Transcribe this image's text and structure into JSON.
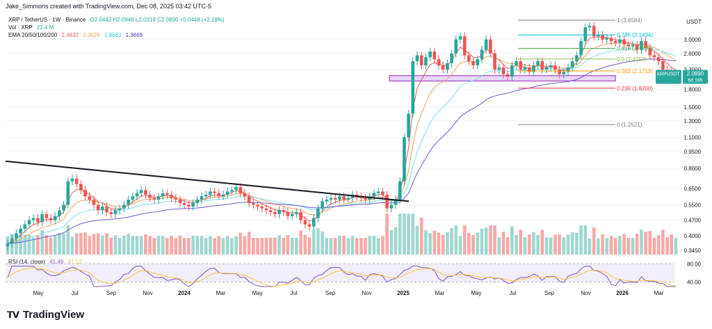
{
  "header": {
    "created_by": "Jake_Simmons created with TradingView.com, Dec 08, 2025 03:42 UTC-5"
  },
  "legend": {
    "symbol": "XRP / TetherUS · 1W · Binance",
    "ohlc": "O2.0442 H2.0946 L2.0319 C2.0890 +0.0448 (+2.19%)",
    "vol_label": "Vol · XRP",
    "vol_value": "21.4 M",
    "ema_label": "EMA 20/50/100/200",
    "ema20": "2.4432",
    "ema50": "2.3026",
    "ema100": "1.8683",
    "ema200": "1.3669",
    "rsi_label": "RSI (14, close)",
    "rsi_value": "41.49",
    "rsi_ma": "47.12"
  },
  "price_badge": {
    "symbol": "XRPUSDT",
    "price": "2.0890",
    "countdown": "6d 16h"
  },
  "currency": "USDT",
  "brand": "TradingView",
  "colors": {
    "up": "#26a69a",
    "down": "#ef5350",
    "ema20": "#f05a5a",
    "ema50": "#f7a35c",
    "ema100": "#7fe0f0",
    "ema200": "#6a5acd",
    "rsi": "#7e57c2",
    "fib_zone": "#c9a7f5"
  },
  "chart_data": {
    "type": "candlestick",
    "log_scale": true,
    "x_ticks": [
      "May",
      "Jul",
      "Sep",
      "Nov",
      "2024",
      "Mar",
      "May",
      "Jul",
      "Sep",
      "Nov",
      "2025",
      "Mar",
      "May",
      "Jul",
      "Sep",
      "Nov",
      "2026",
      "Mar"
    ],
    "y_ticks": [
      "3.0000",
      "2.6000",
      "2.2000",
      "1.8000",
      "1.5000",
      "1.3000",
      "1.1000",
      "0.9500",
      "0.8000",
      "0.6500",
      "0.5500",
      "0.4700",
      "0.4000",
      "0.3450"
    ],
    "ylim": [
      0.33,
      3.9
    ],
    "fib_levels": [
      {
        "label": "1 (3.6584)",
        "value": 3.6584,
        "color": "#787b86"
      },
      {
        "label": "0.786 (3.1434)",
        "value": 3.1434,
        "color": "#00bcd4"
      },
      {
        "label": "0.618 (2.7392)",
        "value": 2.7392,
        "color": "#4caf50"
      },
      {
        "label": "0.5 (2.4552)",
        "value": 2.4552,
        "color": "#8bc34a"
      },
      {
        "label": "0.382 (2.1713)",
        "value": 2.1713,
        "color": "#ff9800"
      },
      {
        "label": "0.236 (1.8200)",
        "value": 1.82,
        "color": "#f23645"
      },
      {
        "label": "0 (1.2521)",
        "value": 1.2521,
        "color": "#787b86"
      }
    ],
    "support_zone": [
      1.96,
      2.07
    ],
    "trendline": [
      {
        "date": "Mar 2023",
        "price": 0.85
      },
      {
        "date": "Jan 2025",
        "price": 0.57
      }
    ],
    "rsi_levels": [
      "80.00",
      "40.00"
    ],
    "series_close": [
      0.37,
      0.39,
      0.41,
      0.43,
      0.45,
      0.47,
      0.48,
      0.46,
      0.5,
      0.48,
      0.47,
      0.49,
      0.52,
      0.55,
      0.7,
      0.72,
      0.68,
      0.64,
      0.6,
      0.58,
      0.55,
      0.52,
      0.54,
      0.51,
      0.5,
      0.52,
      0.53,
      0.55,
      0.58,
      0.6,
      0.62,
      0.64,
      0.61,
      0.59,
      0.58,
      0.6,
      0.62,
      0.61,
      0.59,
      0.58,
      0.56,
      0.55,
      0.54,
      0.56,
      0.58,
      0.6,
      0.61,
      0.63,
      0.62,
      0.6,
      0.61,
      0.63,
      0.64,
      0.66,
      0.62,
      0.6,
      0.56,
      0.55,
      0.54,
      0.53,
      0.52,
      0.51,
      0.5,
      0.52,
      0.51,
      0.49,
      0.5,
      0.51,
      0.47,
      0.45,
      0.44,
      0.48,
      0.53,
      0.57,
      0.58,
      0.59,
      0.58,
      0.6,
      0.58,
      0.59,
      0.61,
      0.6,
      0.59,
      0.58,
      0.6,
      0.62,
      0.63,
      0.61,
      0.53,
      0.55,
      0.58,
      0.7,
      1.1,
      1.4,
      2.4,
      2.55,
      2.3,
      2.5,
      2.65,
      2.45,
      2.3,
      2.2,
      2.35,
      2.6,
      3.0,
      3.1,
      2.55,
      2.4,
      2.3,
      2.45,
      2.7,
      3.0,
      2.6,
      2.2,
      2.25,
      2.1,
      2.05,
      2.3,
      2.4,
      2.2,
      2.25,
      2.15,
      2.3,
      2.4,
      2.2,
      2.25,
      2.3,
      2.2,
      2.1,
      2.15,
      2.25,
      2.4,
      2.55,
      2.95,
      3.4,
      3.45,
      3.1,
      3.15,
      3.0,
      3.05,
      2.95,
      2.9,
      3.0,
      2.85,
      2.8,
      2.85,
      2.7,
      2.95,
      2.75,
      2.55,
      2.5,
      2.4,
      2.2,
      2.15,
      2.05,
      2.09
    ]
  }
}
